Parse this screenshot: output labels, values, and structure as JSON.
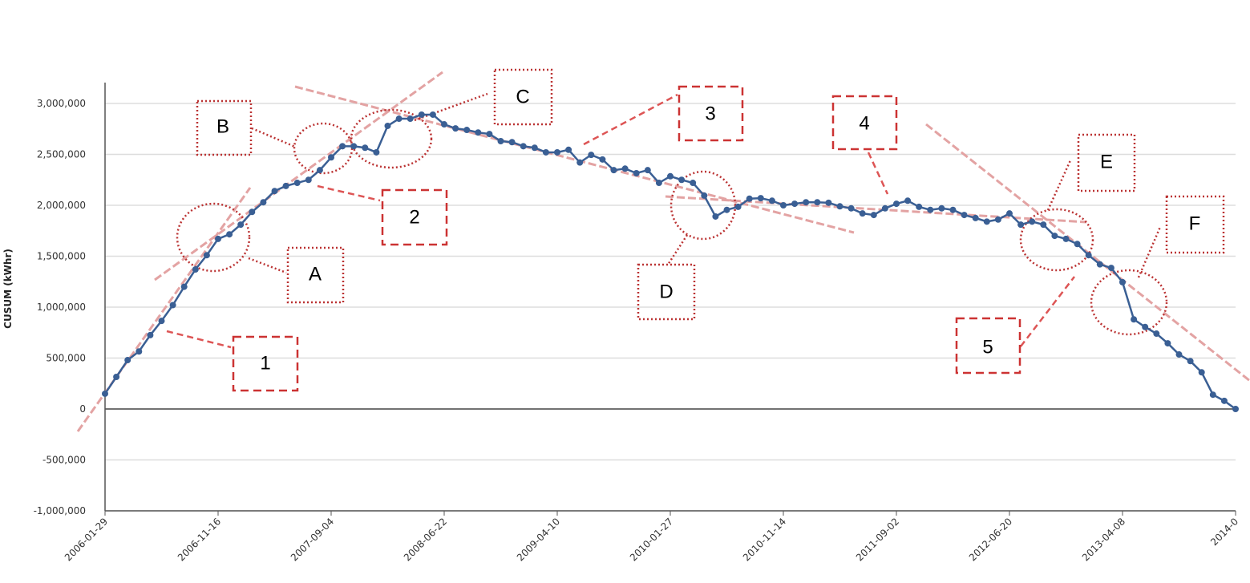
{
  "chart_data": {
    "type": "line",
    "y_label": "CUSUM (kWhr)",
    "categories": [
      "2006-01-29",
      null,
      null,
      null,
      null,
      null,
      null,
      null,
      null,
      null,
      "2006-11-16",
      null,
      null,
      null,
      null,
      null,
      null,
      null,
      null,
      null,
      "2007-09-04",
      null,
      null,
      null,
      null,
      null,
      null,
      null,
      null,
      null,
      "2008-06-22",
      null,
      null,
      null,
      null,
      null,
      null,
      null,
      null,
      null,
      "2009-04-10",
      null,
      null,
      null,
      null,
      null,
      null,
      null,
      null,
      null,
      "2010-01-27",
      null,
      null,
      null,
      null,
      null,
      null,
      null,
      null,
      null,
      "2010-11-14",
      null,
      null,
      null,
      null,
      null,
      null,
      null,
      null,
      null,
      "2011-09-02",
      null,
      null,
      null,
      null,
      null,
      null,
      null,
      null,
      null,
      "2012-06-20",
      null,
      null,
      null,
      null,
      null,
      null,
      null,
      null,
      null,
      "2013-04-08",
      null,
      null,
      null,
      null,
      null,
      null,
      null,
      null,
      null,
      "2014-0"
    ],
    "series": [
      {
        "name": "CUSUM",
        "color": "#3a5f94",
        "values": [
          150000,
          315000,
          480000,
          565000,
          725000,
          865000,
          1020000,
          1200000,
          1370000,
          1510000,
          1670000,
          1715000,
          1810000,
          1935000,
          2030000,
          2140000,
          2190000,
          2220000,
          2250000,
          2345000,
          2470000,
          2580000,
          2580000,
          2565000,
          2520000,
          2780000,
          2850000,
          2850000,
          2890000,
          2890000,
          2795000,
          2755000,
          2740000,
          2715000,
          2700000,
          2630000,
          2620000,
          2580000,
          2565000,
          2520000,
          2520000,
          2545000,
          2420000,
          2495000,
          2450000,
          2345000,
          2360000,
          2315000,
          2345000,
          2220000,
          2285000,
          2250000,
          2220000,
          2095000,
          1890000,
          1955000,
          1985000,
          2065000,
          2070000,
          2045000,
          2000000,
          2015000,
          2030000,
          2030000,
          2025000,
          1990000,
          1970000,
          1920000,
          1905000,
          1970000,
          2015000,
          2045000,
          1985000,
          1955000,
          1970000,
          1955000,
          1905000,
          1875000,
          1840000,
          1860000,
          1920000,
          1810000,
          1840000,
          1810000,
          1700000,
          1670000,
          1620000,
          1510000,
          1420000,
          1385000,
          1245000,
          880000,
          805000,
          740000,
          645000,
          535000,
          470000,
          360000,
          140000,
          80000,
          0
        ]
      }
    ],
    "ylim": [
      -1000000,
      3000000
    ],
    "yticks": [
      {
        "value": -1000000,
        "label": "-1,000,000"
      },
      {
        "value": -500000,
        "label": "-500,000"
      },
      0,
      {
        "value": 500000,
        "label": "500,000"
      },
      {
        "value": 1000000,
        "label": "1,000,000"
      },
      {
        "value": 1500000,
        "label": "1,500,000"
      },
      {
        "value": 2000000,
        "label": "2,000,000"
      },
      {
        "value": 2500000,
        "label": "2,500,000"
      },
      {
        "value": 3000000,
        "label": "3,000,000"
      }
    ],
    "grid": true,
    "annotations": [
      "1",
      "2",
      "3",
      "4",
      "5",
      "A",
      "B",
      "C",
      "D",
      "E",
      "F"
    ]
  }
}
